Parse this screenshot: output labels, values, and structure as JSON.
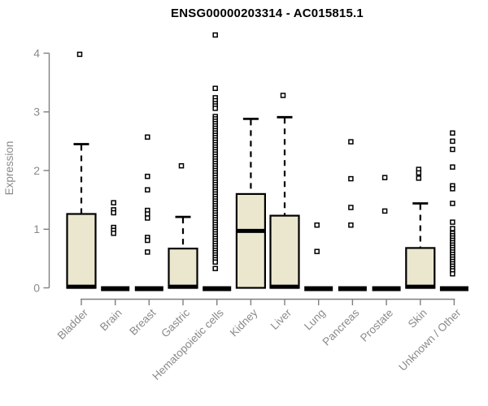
{
  "figure": {
    "title": "ENSG00000203314 - AC015815.1"
  },
  "chart_data": {
    "type": "boxplot",
    "title": "ENSG00000203314 - AC015815.1",
    "xlabel": "",
    "ylabel": "Expression",
    "ylim": [
      0,
      4.4
    ],
    "yticks": [
      0,
      1,
      2,
      3,
      4
    ],
    "grid": false,
    "legend": false,
    "colors": {
      "box_fill": "#EBE6CE",
      "box_stroke": "#000000",
      "median": "#000000",
      "whisker": "#000000",
      "outlier_stroke": "#000000",
      "outlier_fill": "#FFFFFF",
      "axis_line": "#7F7F7F",
      "axis_text": "#8A8A8A",
      "title_text": "#000000",
      "background": "#FFFFFF"
    },
    "categories": [
      "Bladder",
      "Brain",
      "Breast",
      "Gastric",
      "Hematopoietic cells",
      "Kidney",
      "Liver",
      "Lung",
      "Pancreas",
      "Prostate",
      "Skin",
      "Unknown / Other"
    ],
    "series": [
      {
        "name": "Bladder",
        "q1": 0,
        "median": 0.02,
        "q3": 1.26,
        "whisker_low": 0,
        "whisker_high": 2.45,
        "outliers": [
          3.98
        ]
      },
      {
        "name": "Brain",
        "q1": 0,
        "median": 0,
        "q3": 0,
        "whisker_low": 0,
        "whisker_high": 0,
        "outliers": [
          1.45,
          1.33,
          1.28,
          1.03,
          0.98,
          0.93
        ]
      },
      {
        "name": "Breast",
        "q1": 0,
        "median": 0,
        "q3": 0,
        "whisker_low": 0,
        "whisker_high": 0,
        "outliers": [
          2.57,
          1.9,
          1.67,
          1.32,
          1.26,
          1.19,
          0.86,
          0.81,
          0.61
        ]
      },
      {
        "name": "Gastric",
        "q1": 0,
        "median": 0.02,
        "q3": 0.67,
        "whisker_low": 0,
        "whisker_high": 1.21,
        "outliers": [
          2.08
        ]
      },
      {
        "name": "Hematopoietic cells",
        "q1": 0,
        "median": 0,
        "q3": 0,
        "whisker_low": 0,
        "whisker_high": 0,
        "outliers": [
          4.31,
          3.4,
          3.24,
          3.19,
          3.14,
          3.1,
          3.06,
          2.92,
          2.88,
          2.84,
          2.8,
          2.76,
          2.72,
          2.68,
          2.64,
          2.6,
          2.56,
          2.52,
          2.48,
          2.44,
          2.4,
          2.36,
          2.32,
          2.28,
          2.24,
          2.2,
          2.16,
          2.12,
          2.08,
          2.04,
          2.0,
          1.96,
          1.92,
          1.88,
          1.84,
          1.8,
          1.76,
          1.72,
          1.68,
          1.64,
          1.6,
          1.56,
          1.52,
          1.48,
          1.44,
          1.4,
          1.36,
          1.32,
          1.28,
          1.24,
          1.2,
          1.16,
          1.12,
          1.08,
          1.04,
          1.0,
          0.96,
          0.92,
          0.88,
          0.84,
          0.8,
          0.76,
          0.72,
          0.68,
          0.64,
          0.6,
          0.56,
          0.52,
          0.48,
          0.44,
          0.33
        ]
      },
      {
        "name": "Kidney",
        "q1": 0,
        "median": 0.97,
        "q3": 1.6,
        "whisker_low": 0,
        "whisker_high": 2.88,
        "outliers": []
      },
      {
        "name": "Liver",
        "q1": 0,
        "median": 0.02,
        "q3": 1.23,
        "whisker_low": 0,
        "whisker_high": 2.91,
        "outliers": [
          3.28
        ]
      },
      {
        "name": "Lung",
        "q1": 0,
        "median": 0,
        "q3": 0,
        "whisker_low": 0,
        "whisker_high": 0,
        "outliers": [
          1.07,
          0.62
        ]
      },
      {
        "name": "Pancreas",
        "q1": 0,
        "median": 0,
        "q3": 0,
        "whisker_low": 0,
        "whisker_high": 0,
        "outliers": [
          2.49,
          1.86,
          1.37,
          1.07
        ]
      },
      {
        "name": "Prostate",
        "q1": 0,
        "median": 0,
        "q3": 0,
        "whisker_low": 0,
        "whisker_high": 0,
        "outliers": [
          1.88,
          1.31
        ]
      },
      {
        "name": "Skin",
        "q1": 0,
        "median": 0.02,
        "q3": 0.68,
        "whisker_low": 0,
        "whisker_high": 1.44,
        "outliers": [
          2.02,
          1.96,
          1.87
        ]
      },
      {
        "name": "Unknown / Other",
        "q1": 0,
        "median": 0,
        "q3": 0,
        "whisker_low": 0,
        "whisker_high": 0,
        "outliers": [
          2.64,
          2.5,
          2.36,
          2.06,
          1.74,
          1.69,
          1.44,
          1.12,
          1.01,
          0.93,
          0.89,
          0.85,
          0.81,
          0.77,
          0.73,
          0.69,
          0.65,
          0.61,
          0.57,
          0.53,
          0.49,
          0.45,
          0.41,
          0.37,
          0.33,
          0.29,
          0.24
        ]
      }
    ]
  }
}
